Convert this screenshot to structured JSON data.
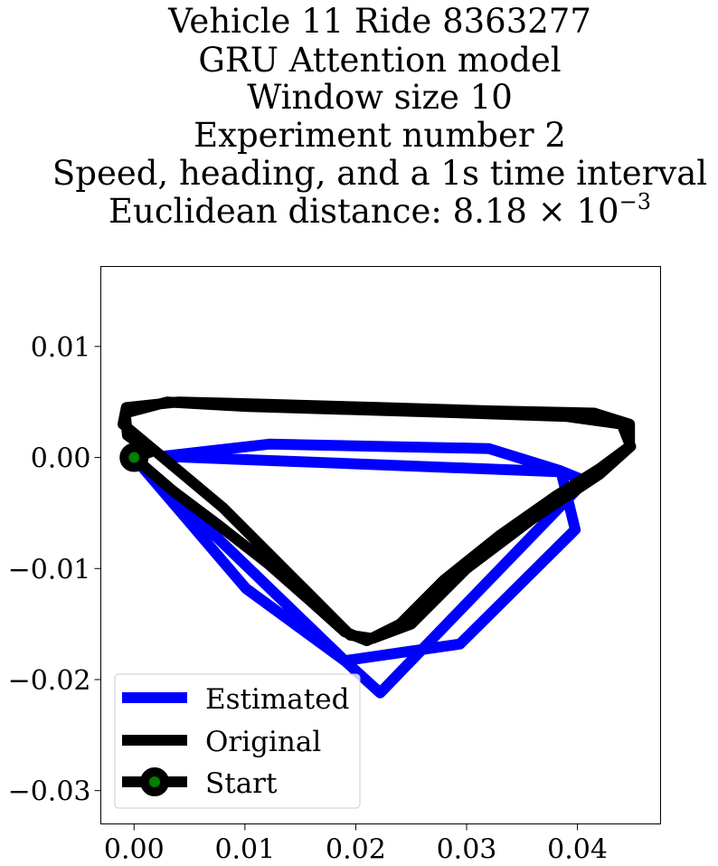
{
  "chart_data": {
    "type": "line",
    "title_lines": [
      "Vehicle 11 Ride 8363277",
      "GRU Attention model",
      "Window size 10",
      "Experiment number 2",
      "Speed, heading, and a 1s time interval"
    ],
    "title_distance": {
      "prefix": "Euclidean distance: 8.18",
      "times": "×",
      "base": "10",
      "exponent": "−3"
    },
    "xlabel": "",
    "ylabel": "",
    "xlim": [
      -0.003,
      0.0475
    ],
    "ylim": [
      -0.033,
      0.0172
    ],
    "x_ticks": [
      {
        "value": 0.0,
        "label": "0.00"
      },
      {
        "value": 0.01,
        "label": "0.01"
      },
      {
        "value": 0.02,
        "label": "0.02"
      },
      {
        "value": 0.03,
        "label": "0.03"
      },
      {
        "value": 0.04,
        "label": "0.04"
      }
    ],
    "y_ticks": [
      {
        "value": 0.01,
        "label": "0.01"
      },
      {
        "value": 0.0,
        "label": "0.00"
      },
      {
        "value": -0.01,
        "label": "−0.01"
      },
      {
        "value": -0.02,
        "label": "−0.02"
      },
      {
        "value": -0.03,
        "label": "−0.03"
      }
    ],
    "grid": false,
    "legend_position": "lower-left",
    "series": [
      {
        "name": "Estimated",
        "color": "#0000ff",
        "x": [
          0.0,
          0.0101,
          0.019,
          0.0222,
          0.0407,
          0.0387,
          0.0025,
          0.0122,
          0.032,
          0.0385,
          0.0398,
          0.0294,
          0.019,
          0.0
        ],
        "y": [
          0.0,
          -0.0118,
          -0.0183,
          -0.0212,
          -0.0021,
          -0.0013,
          0.0001,
          0.0012,
          0.0008,
          -0.0012,
          -0.0065,
          -0.0168,
          -0.0183,
          0.0
        ]
      },
      {
        "name": "Original",
        "color": "#000000",
        "x": [
          0.0,
          0.0035,
          0.0075,
          0.012,
          0.016,
          0.019,
          0.021,
          0.024,
          0.028,
          0.033,
          0.038,
          0.042,
          0.0447,
          0.0447,
          0.0415,
          0.032,
          0.022,
          0.012,
          0.004,
          -0.0007,
          -0.001,
          0.002,
          0.008,
          0.012,
          0.016,
          0.0195,
          0.0215,
          0.025,
          0.03,
          0.036,
          0.042,
          0.0448,
          0.044,
          0.039,
          0.03,
          0.02,
          0.01,
          0.003,
          -0.0008,
          -0.0006,
          0.0015,
          0.0
        ],
        "y": [
          0.0,
          -0.003,
          -0.006,
          -0.0095,
          -0.013,
          -0.0157,
          -0.0165,
          -0.015,
          -0.011,
          -0.007,
          -0.0035,
          -0.001,
          0.001,
          0.003,
          0.004,
          0.0042,
          0.0045,
          0.0048,
          0.005,
          0.0045,
          0.003,
          0.0005,
          -0.0045,
          -0.0085,
          -0.0125,
          -0.016,
          -0.0163,
          -0.015,
          -0.01,
          -0.0055,
          -0.0015,
          0.001,
          0.003,
          0.0037,
          0.004,
          0.0043,
          0.0046,
          0.005,
          0.004,
          0.002,
          0.0005,
          0.0
        ]
      },
      {
        "name": "Start",
        "color": "#000000",
        "marker_fill": "#008000",
        "x": [
          0.0
        ],
        "y": [
          0.0
        ]
      }
    ]
  }
}
